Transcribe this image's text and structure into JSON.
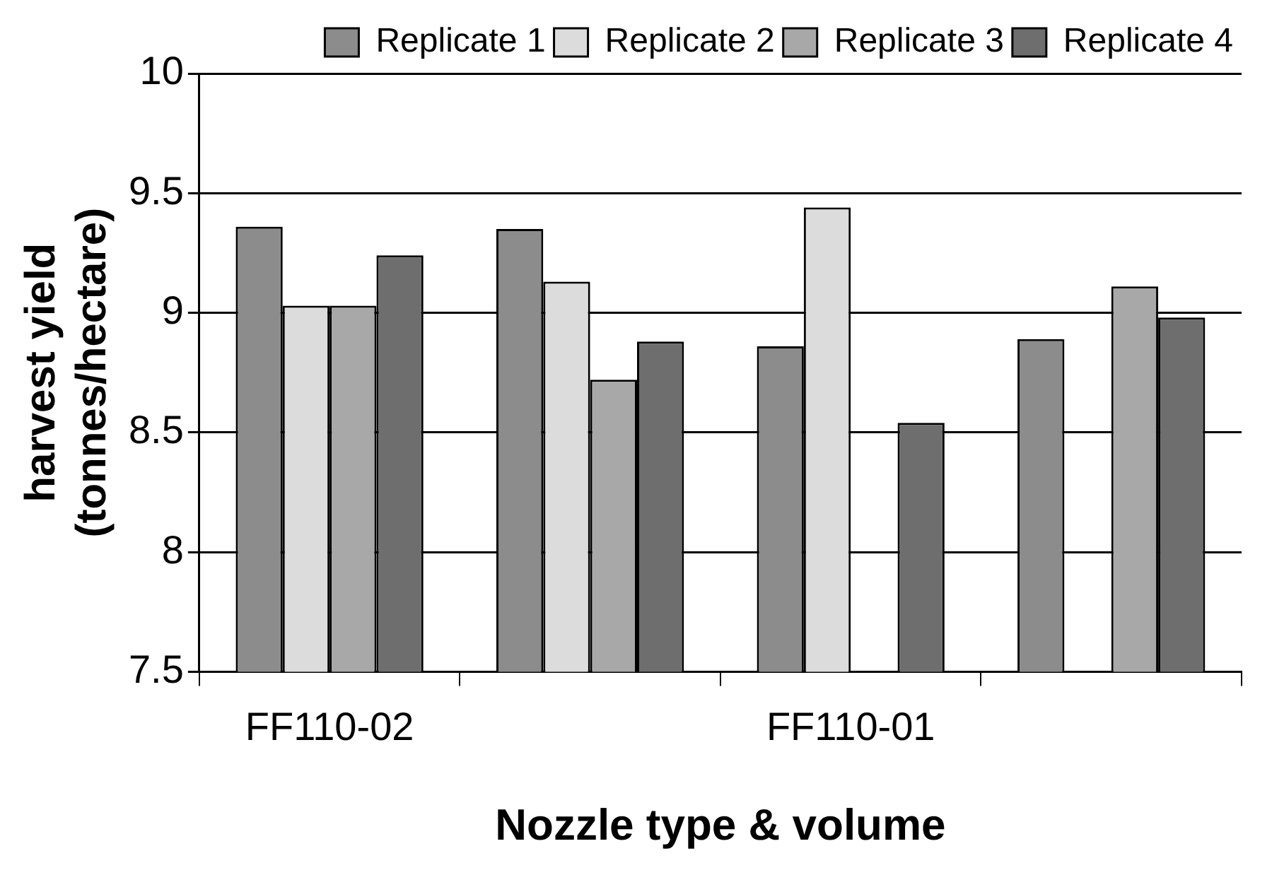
{
  "chart_data": {
    "type": "bar",
    "xlabel": "Nozzle type & volume",
    "ylabel": "harvest yield\n(tonnes/hectare)",
    "categories": [
      "FF110-02",
      null,
      "FF110-01",
      null
    ],
    "series": [
      {
        "name": "Replicate 1",
        "color": "#8c8c8c",
        "values": [
          9.36,
          9.35,
          8.86,
          8.89
        ]
      },
      {
        "name": "Replicate 2",
        "color": "#dcdcdc",
        "values": [
          9.03,
          9.13,
          9.44,
          null
        ]
      },
      {
        "name": "Replicate 3",
        "color": "#a8a8a8",
        "values": [
          9.03,
          8.72,
          null,
          9.11
        ]
      },
      {
        "name": "Replicate 4",
        "color": "#6e6e6e",
        "values": [
          9.24,
          8.88,
          8.54,
          8.98
        ]
      }
    ],
    "ylim": [
      7.5,
      10
    ],
    "yticks": [
      7.5,
      8,
      8.5,
      9,
      9.5,
      10
    ],
    "grid": "y",
    "legend": "top right"
  }
}
